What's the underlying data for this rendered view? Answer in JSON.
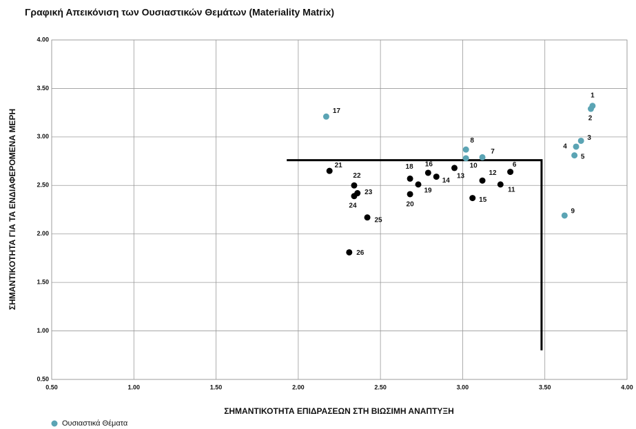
{
  "chart_data": {
    "type": "scatter",
    "title": "Γραφική Απεικόνιση των Ουσιαστικών Θεμάτων (Materiality Matrix)",
    "x_label": "ΣΗΜΑΝΤΙΚΟΤΗΤΑ ΕΠΙΔΡΑΣΕΩΝ ΣΤΗ ΒΙΩΣΙΜΗ ΑΝΑΠΤΥΞΗ",
    "y_label": "ΣΗΜΑΝΤΙΚΟΤΗΤΑ ΓΙΑ ΤΑ ΕΝΔΙΑΦΕΡΟΜΕΝΑ ΜΕΡΗ",
    "xlim": [
      0.5,
      4.0
    ],
    "ylim": [
      0.5,
      4.0
    ],
    "xticks": [
      {
        "value": 0.5,
        "label": "0.50"
      },
      {
        "value": 1.0,
        "label": "1.00"
      },
      {
        "value": 1.5,
        "label": "1.50"
      },
      {
        "value": 2.0,
        "label": "2.00"
      },
      {
        "value": 2.5,
        "label": "2.50"
      },
      {
        "value": 3.0,
        "label": "3.00"
      },
      {
        "value": 3.5,
        "label": "3.50"
      },
      {
        "value": 4.0,
        "label": "4.00"
      }
    ],
    "yticks": [
      {
        "value": 0.5,
        "label": "0.50"
      },
      {
        "value": 1.0,
        "label": "1.00"
      },
      {
        "value": 1.5,
        "label": "1.50"
      },
      {
        "value": 2.0,
        "label": "2.00"
      },
      {
        "value": 2.5,
        "label": "2.50"
      },
      {
        "value": 3.0,
        "label": "3.00"
      },
      {
        "value": 3.5,
        "label": "3.50"
      },
      {
        "value": 4.0,
        "label": "4.00"
      }
    ],
    "grid": true,
    "legend": "bottom-left",
    "threshold": {
      "x": [
        1.93,
        3.48,
        3.48
      ],
      "y": [
        2.76,
        2.76,
        0.8
      ],
      "color": "#000000"
    },
    "series": [
      {
        "name": "Ουσιαστικά Θέματα",
        "color": "#5ba4b4",
        "labels": [
          "1",
          "2",
          "3",
          "4",
          "5",
          "9",
          "17",
          "8",
          "10",
          "7"
        ],
        "x": [
          3.79,
          3.78,
          3.72,
          3.69,
          3.68,
          3.62,
          2.17,
          3.02,
          3.02,
          3.12
        ],
        "values": [
          3.32,
          3.29,
          2.96,
          2.9,
          2.81,
          2.19,
          3.21,
          2.87,
          2.78,
          2.79
        ]
      },
      {
        "color": "#000000",
        "labels": [
          "21",
          "22",
          "23",
          "24",
          "25",
          "26",
          "18",
          "16",
          "14",
          "19",
          "20",
          "13",
          "15",
          "12",
          "11",
          "6"
        ],
        "x": [
          2.19,
          2.34,
          2.36,
          2.34,
          2.42,
          2.31,
          2.68,
          2.79,
          2.84,
          2.73,
          2.68,
          2.95,
          3.06,
          3.12,
          3.23,
          3.29
        ],
        "values": [
          2.65,
          2.5,
          2.42,
          2.39,
          2.17,
          1.81,
          2.57,
          2.63,
          2.59,
          2.51,
          2.41,
          2.68,
          2.37,
          2.55,
          2.51,
          2.64
        ]
      }
    ]
  }
}
